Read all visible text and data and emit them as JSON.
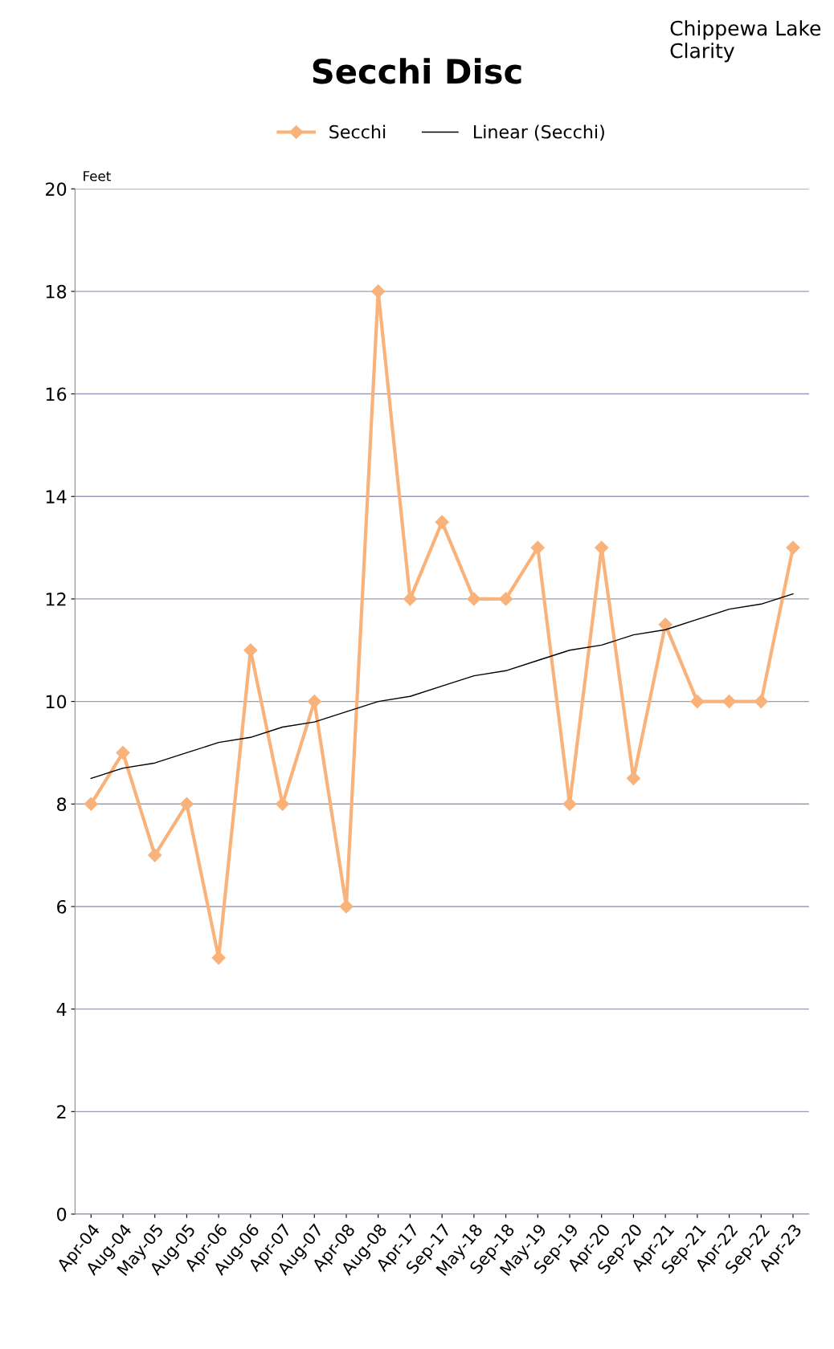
{
  "chart_data": {
    "type": "line",
    "title": "Secchi Disc",
    "ylabel": "Feet",
    "annotations": [
      "Chippewa Lake\nClarity"
    ],
    "categories": [
      "Apr-04",
      "Aug-04",
      "May-05",
      "Aug-05",
      "Apr-06",
      "Aug-06",
      "Apr-07",
      "Aug-07",
      "Apr-08",
      "Aug-08",
      "Apr-17",
      "Sep-17",
      "May-18",
      "Sep-18",
      "May-19",
      "Sep-19",
      "Apr-20",
      "Sep-20",
      "Apr-21",
      "Sep-21",
      "Apr-22",
      "Sep-22",
      "Apr-23"
    ],
    "series": [
      {
        "name": "Secchi",
        "color": "#f9b27a",
        "marker": "diamond",
        "values": [
          8,
          9,
          7,
          8,
          5,
          11,
          8,
          10,
          6,
          18,
          12,
          13.5,
          12,
          12,
          13,
          8,
          13,
          8.5,
          11.5,
          10,
          10,
          10,
          13
        ]
      },
      {
        "name": "Linear (Secchi)",
        "color": "#000000",
        "marker": "none",
        "values": [
          8.5,
          8.7,
          8.8,
          9.0,
          9.2,
          9.3,
          9.5,
          9.6,
          9.8,
          10.0,
          10.1,
          10.3,
          10.5,
          10.6,
          10.8,
          11.0,
          11.1,
          11.3,
          11.4,
          11.6,
          11.8,
          11.9,
          12.1
        ]
      }
    ],
    "ylim": [
      0,
      20
    ],
    "yticks": [
      0,
      2,
      4,
      6,
      8,
      10,
      12,
      14,
      16,
      18,
      20
    ],
    "grid": "y",
    "legend": "top"
  }
}
